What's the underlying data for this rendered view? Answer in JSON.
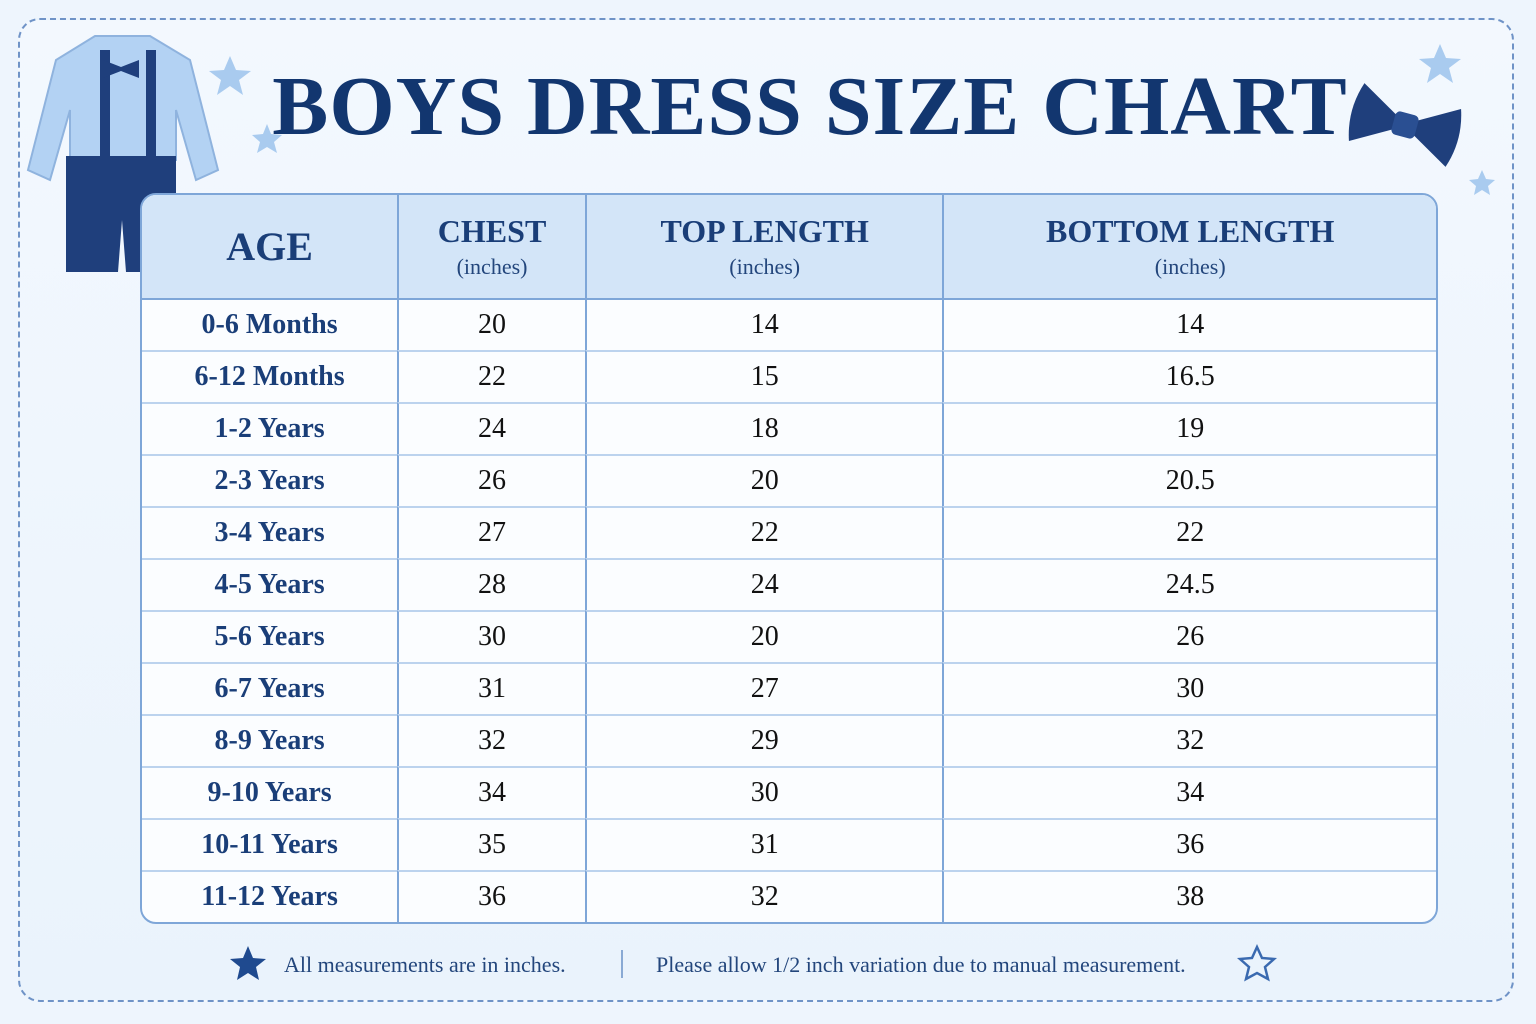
{
  "header": {
    "title": "BOYS DRESS SIZE CHART"
  },
  "table": {
    "columns": [
      {
        "name": "AGE"
      },
      {
        "name": "CHEST",
        "unit": "(inches)"
      },
      {
        "name": "TOP LENGTH",
        "unit": "(inches)"
      },
      {
        "name": "BOTTOM LENGTH",
        "unit": "(inches)"
      }
    ],
    "rows": [
      [
        "0-6 Months",
        20,
        14,
        14
      ],
      [
        "6-12 Months",
        22,
        15,
        16.5
      ],
      [
        "1-2 Years",
        24,
        18,
        19
      ],
      [
        "2-3 Years",
        26,
        20,
        20.5
      ],
      [
        "3-4 Years",
        27,
        22,
        22
      ],
      [
        "4-5 Years",
        28,
        24,
        24.5
      ],
      [
        "5-6 Years",
        30,
        20,
        26
      ],
      [
        "6-7 Years",
        31,
        27,
        30
      ],
      [
        "8-9 Years",
        32,
        29,
        32
      ],
      [
        "9-10 Years",
        34,
        30,
        34
      ],
      [
        "10-11 Years",
        35,
        31,
        36
      ],
      [
        "11-12 Years",
        36,
        32,
        38
      ]
    ]
  },
  "footer": {
    "notes": [
      "All measurements are in inches.",
      "Please allow 1/2 inch variation due to manual measurement."
    ]
  }
}
